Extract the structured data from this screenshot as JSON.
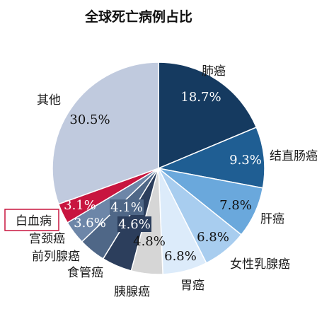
{
  "chart_data": {
    "type": "pie",
    "title": "全球死亡病例占比",
    "categories": [
      "肺癌",
      "结直肠癌",
      "肝癌",
      "女性乳腺癌",
      "胃癌",
      "胰腺癌",
      "食管癌",
      "前列腺癌",
      "宫颈癌",
      "白血病",
      "其他"
    ],
    "values": [
      18.7,
      9.3,
      7.8,
      6.8,
      6.8,
      4.8,
      4.6,
      4.1,
      3.6,
      3.1,
      30.5
    ],
    "labels": [
      "18.7%",
      "9.3%",
      "7.8%",
      "6.8%",
      "6.8%",
      "4.8%",
      "4.6%",
      "4.1%",
      "3.6%",
      "3.1%",
      "30.5%"
    ],
    "colors": [
      "#153a60",
      "#1f5e93",
      "#6aa8dc",
      "#a8cdef",
      "#dcebfa",
      "#d6d6d6",
      "#2c3e5c",
      "#4f6787",
      "#6d86a8",
      "#c8153f",
      "#c0cade"
    ],
    "highlighted_category": "白血病",
    "legend": "none"
  }
}
